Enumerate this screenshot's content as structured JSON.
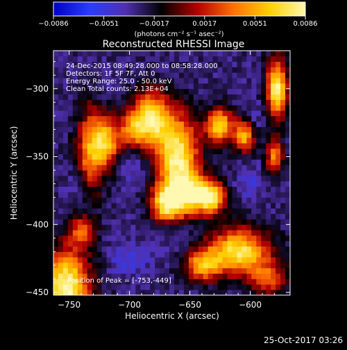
{
  "colorbar": {
    "ticks": [
      "−0.0086",
      "−0.0051",
      "−0.0017",
      "0.0017",
      "0.0051",
      "0.0086"
    ],
    "range": [
      -0.0086,
      0.0086
    ],
    "unit_label": "(photons cm⁻² s⁻¹ asec⁻²)",
    "colormap": [
      "#0000c8",
      "#2a3cff",
      "#5030b0",
      "#000000",
      "#b40000",
      "#ff7000",
      "#ffd000",
      "#fff8b0"
    ]
  },
  "chart_data": {
    "type": "heatmap",
    "title": "Reconstructed RHESSI Image",
    "xlabel": "Heliocentric X (arcsec)",
    "ylabel": "Heliocentric Y (arcsec)",
    "xlim": [
      -763,
      -567
    ],
    "ylim": [
      -452,
      -272
    ],
    "x_ticks": [
      -750,
      -700,
      -650,
      -600
    ],
    "x_tick_labels": [
      "−750",
      "−700",
      "−650",
      "−600"
    ],
    "y_ticks": [
      -450,
      -400,
      -350,
      -300
    ],
    "y_tick_labels": [
      "−450",
      "−400",
      "−350",
      "−300"
    ],
    "annotations": [
      "24-Dec-2015 08:49:28.000 to 08:58:28.000",
      "Detectors: 1F 5F 7F, Att 0",
      "Energy Range: 25.0 - 50.0 keV",
      "Clean    Total counts: 2.13E+04"
    ],
    "peak_label": "Position of Peak = [-753,-449]",
    "peak_position": [
      -753,
      -449
    ],
    "blobs": [
      {
        "x": -753,
        "y": -445,
        "sx": 14,
        "sy": 18,
        "value": 0.0086
      },
      {
        "x": -740,
        "y": -405,
        "sx": 8,
        "sy": 8,
        "value": 0.003
      },
      {
        "x": -732,
        "y": -345,
        "sx": 8,
        "sy": 22,
        "value": 0.0045
      },
      {
        "x": -718,
        "y": -338,
        "sx": 8,
        "sy": 13,
        "value": 0.005
      },
      {
        "x": -698,
        "y": -330,
        "sx": 7,
        "sy": 10,
        "value": 0.003
      },
      {
        "x": -682,
        "y": -322,
        "sx": 10,
        "sy": 14,
        "value": 0.0075
      },
      {
        "x": -660,
        "y": -350,
        "sx": 12,
        "sy": 22,
        "value": 0.0082
      },
      {
        "x": -670,
        "y": -385,
        "sx": 9,
        "sy": 9,
        "value": 0.0055
      },
      {
        "x": -650,
        "y": -378,
        "sx": 13,
        "sy": 10,
        "value": 0.0058
      },
      {
        "x": -632,
        "y": -380,
        "sx": 8,
        "sy": 8,
        "value": 0.006
      },
      {
        "x": -625,
        "y": -327,
        "sx": 8,
        "sy": 9,
        "value": 0.0065
      },
      {
        "x": -605,
        "y": -335,
        "sx": 6,
        "sy": 8,
        "value": 0.005
      },
      {
        "x": -578,
        "y": -300,
        "sx": 6,
        "sy": 14,
        "value": 0.0085
      },
      {
        "x": -580,
        "y": -350,
        "sx": 5,
        "sy": 10,
        "value": 0.004
      },
      {
        "x": -610,
        "y": -420,
        "sx": 18,
        "sy": 12,
        "value": 0.0075
      },
      {
        "x": -640,
        "y": -430,
        "sx": 10,
        "sy": 8,
        "value": 0.0045
      },
      {
        "x": -585,
        "y": -440,
        "sx": 10,
        "sy": 8,
        "value": 0.003
      },
      {
        "x": -720,
        "y": -300,
        "sx": 8,
        "sy": 6,
        "value": -0.0035
      },
      {
        "x": -700,
        "y": -355,
        "sx": 9,
        "sy": 10,
        "value": -0.0045
      },
      {
        "x": -742,
        "y": -372,
        "sx": 8,
        "sy": 8,
        "value": -0.004
      },
      {
        "x": -600,
        "y": -370,
        "sx": 8,
        "sy": 8,
        "value": -0.0045
      },
      {
        "x": -660,
        "y": -408,
        "sx": 11,
        "sy": 7,
        "value": -0.004
      },
      {
        "x": -700,
        "y": -425,
        "sx": 11,
        "sy": 8,
        "value": -0.005
      },
      {
        "x": -640,
        "y": -290,
        "sx": 8,
        "sy": 6,
        "value": -0.003
      },
      {
        "x": -595,
        "y": -320,
        "sx": 4,
        "sy": 7,
        "value": -0.004
      }
    ]
  },
  "footer": {
    "timestamp": "25-Oct-2017 03:26"
  }
}
